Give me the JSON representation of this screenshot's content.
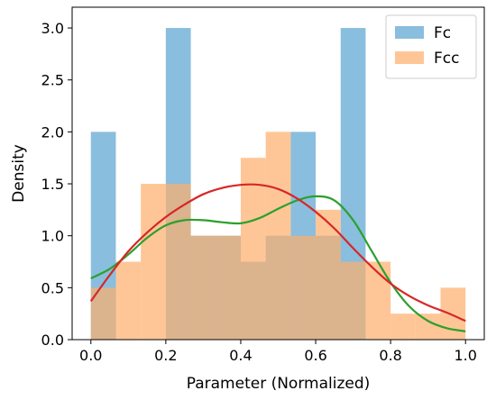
{
  "chart_data": {
    "type": "histogram",
    "xlabel": "Parameter (Normalized)",
    "ylabel": "Density",
    "xlim": [
      -0.05,
      1.05
    ],
    "ylim": [
      0,
      3.2
    ],
    "x_ticks": [
      "0.0",
      "0.2",
      "0.4",
      "0.6",
      "0.8",
      "1.0"
    ],
    "y_ticks": [
      "0.0",
      "0.5",
      "1.0",
      "1.5",
      "2.0",
      "2.5",
      "3.0"
    ],
    "legend_position": "top-right",
    "series": [
      {
        "name": "Fc",
        "color": "#6baed6",
        "bins": [
          {
            "x0": 0.0,
            "x1": 0.0667,
            "value": 2.0
          },
          {
            "x0": 0.0667,
            "x1": 0.1333,
            "value": 0.0
          },
          {
            "x0": 0.1333,
            "x1": 0.2,
            "value": 0.0
          },
          {
            "x0": 0.2,
            "x1": 0.2667,
            "value": 3.0
          },
          {
            "x0": 0.2667,
            "x1": 0.3333,
            "value": 1.0
          },
          {
            "x0": 0.3333,
            "x1": 0.4,
            "value": 1.0
          },
          {
            "x0": 0.4,
            "x1": 0.4667,
            "value": 0.75
          },
          {
            "x0": 0.4667,
            "x1": 0.5333,
            "value": 1.0
          },
          {
            "x0": 0.5333,
            "x1": 0.6,
            "value": 2.0
          },
          {
            "x0": 0.6,
            "x1": 0.6667,
            "value": 1.0
          },
          {
            "x0": 0.6667,
            "x1": 0.7333,
            "value": 3.0
          },
          {
            "x0": 0.7333,
            "x1": 0.8,
            "value": 0.0
          },
          {
            "x0": 0.8,
            "x1": 0.8667,
            "value": 0.0
          },
          {
            "x0": 0.8667,
            "x1": 0.9333,
            "value": 0.0
          },
          {
            "x0": 0.9333,
            "x1": 1.0,
            "value": 0.0
          }
        ]
      },
      {
        "name": "Fcc",
        "color": "#fdae6b",
        "bins": [
          {
            "x0": 0.0,
            "x1": 0.0667,
            "value": 0.5
          },
          {
            "x0": 0.0667,
            "x1": 0.1333,
            "value": 0.75
          },
          {
            "x0": 0.1333,
            "x1": 0.2,
            "value": 1.5
          },
          {
            "x0": 0.2,
            "x1": 0.2667,
            "value": 1.5
          },
          {
            "x0": 0.2667,
            "x1": 0.3333,
            "value": 1.0
          },
          {
            "x0": 0.3333,
            "x1": 0.4,
            "value": 1.0
          },
          {
            "x0": 0.4,
            "x1": 0.4667,
            "value": 1.75
          },
          {
            "x0": 0.4667,
            "x1": 0.5333,
            "value": 2.0
          },
          {
            "x0": 0.5333,
            "x1": 0.6,
            "value": 1.0
          },
          {
            "x0": 0.6,
            "x1": 0.6667,
            "value": 1.25
          },
          {
            "x0": 0.6667,
            "x1": 0.7333,
            "value": 0.75
          },
          {
            "x0": 0.7333,
            "x1": 0.8,
            "value": 0.75
          },
          {
            "x0": 0.8,
            "x1": 0.8667,
            "value": 0.25
          },
          {
            "x0": 0.8667,
            "x1": 0.9333,
            "value": 0.25
          },
          {
            "x0": 0.9333,
            "x1": 1.0,
            "value": 0.5
          }
        ]
      }
    ],
    "kde_lines": [
      {
        "color": "#2ca02c",
        "points": [
          [
            0.0,
            0.59
          ],
          [
            0.05,
            0.68
          ],
          [
            0.1,
            0.82
          ],
          [
            0.15,
            0.98
          ],
          [
            0.2,
            1.1
          ],
          [
            0.25,
            1.15
          ],
          [
            0.3,
            1.15
          ],
          [
            0.35,
            1.13
          ],
          [
            0.4,
            1.12
          ],
          [
            0.45,
            1.17
          ],
          [
            0.5,
            1.26
          ],
          [
            0.55,
            1.34
          ],
          [
            0.6,
            1.38
          ],
          [
            0.65,
            1.34
          ],
          [
            0.7,
            1.15
          ],
          [
            0.75,
            0.85
          ],
          [
            0.8,
            0.55
          ],
          [
            0.85,
            0.32
          ],
          [
            0.9,
            0.18
          ],
          [
            0.95,
            0.11
          ],
          [
            1.0,
            0.08
          ]
        ]
      },
      {
        "color": "#d62728",
        "points": [
          [
            0.0,
            0.37
          ],
          [
            0.05,
            0.62
          ],
          [
            0.1,
            0.85
          ],
          [
            0.15,
            1.03
          ],
          [
            0.2,
            1.18
          ],
          [
            0.25,
            1.3
          ],
          [
            0.3,
            1.4
          ],
          [
            0.35,
            1.46
          ],
          [
            0.4,
            1.49
          ],
          [
            0.45,
            1.49
          ],
          [
            0.5,
            1.45
          ],
          [
            0.55,
            1.36
          ],
          [
            0.6,
            1.23
          ],
          [
            0.65,
            1.07
          ],
          [
            0.7,
            0.88
          ],
          [
            0.75,
            0.7
          ],
          [
            0.8,
            0.54
          ],
          [
            0.85,
            0.42
          ],
          [
            0.9,
            0.33
          ],
          [
            0.95,
            0.26
          ],
          [
            1.0,
            0.18
          ]
        ]
      }
    ]
  }
}
